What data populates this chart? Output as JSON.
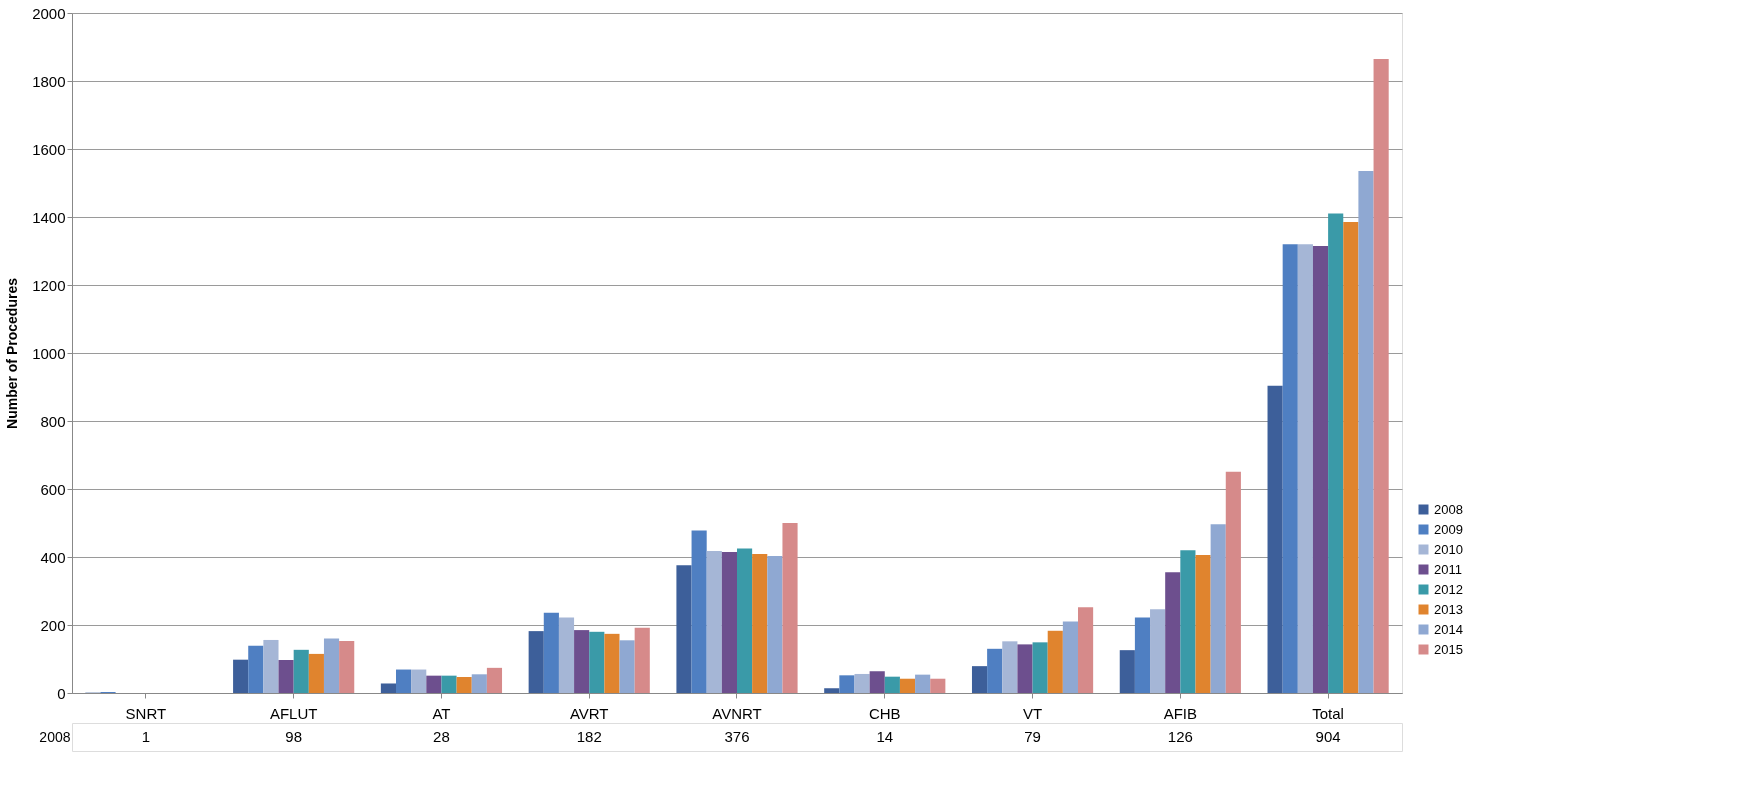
{
  "chart_data": {
    "type": "bar",
    "ylabel": "Number of Procedures",
    "categories": [
      "SNRT",
      "AFLUT",
      "AT",
      "AVRT",
      "AVNRT",
      "CHB",
      "VT",
      "AFIB",
      "Total"
    ],
    "ylim": [
      0,
      2000
    ],
    "yticks": [
      0,
      200,
      400,
      600,
      800,
      1000,
      1200,
      1400,
      1600,
      1800,
      2000
    ],
    "grid": "y",
    "legend": "bottom right",
    "series": [
      {
        "name": "2008",
        "color": "#3d5f9a",
        "values": [
          1,
          98,
          28,
          182,
          376,
          14,
          79,
          126,
          904
        ],
        "value_labels": [
          "1",
          "98",
          "28",
          "182",
          "376",
          "14",
          "79",
          "126",
          "904"
        ]
      },
      {
        "name": "2009",
        "color": "#4f7fc2",
        "values": [
          3,
          139,
          69,
          236,
          478,
          52,
          130,
          222,
          1320
        ]
      },
      {
        "name": "2010",
        "color": "#a5b6d6",
        "values": [
          0,
          156,
          69,
          222,
          418,
          56,
          152,
          246,
          1320
        ]
      },
      {
        "name": "2011",
        "color": "#6d4f8e",
        "values": [
          0,
          97,
          51,
          185,
          415,
          64,
          143,
          355,
          1315
        ]
      },
      {
        "name": "2012",
        "color": "#3a9aa8",
        "values": [
          0,
          127,
          51,
          180,
          425,
          48,
          149,
          420,
          1410
        ]
      },
      {
        "name": "2013",
        "color": "#e0842e",
        "values": [
          0,
          115,
          47,
          174,
          409,
          42,
          183,
          406,
          1385
        ]
      },
      {
        "name": "2014",
        "color": "#8fa8d2",
        "values": [
          0,
          160,
          55,
          155,
          403,
          54,
          210,
          496,
          1535
        ]
      },
      {
        "name": "2015",
        "color": "#d68a8a",
        "values": [
          0,
          153,
          74,
          192,
          500,
          42,
          252,
          651,
          1865
        ]
      }
    ]
  }
}
